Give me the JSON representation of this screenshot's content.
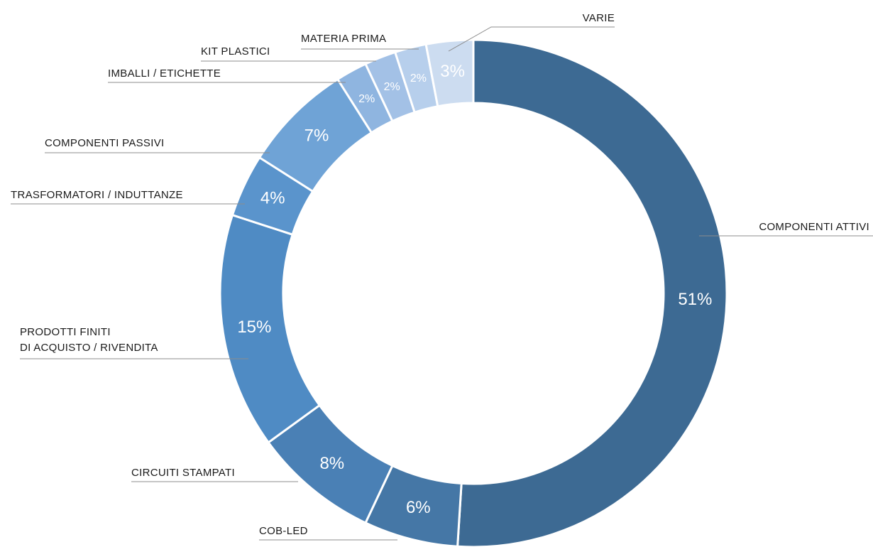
{
  "chart_data": {
    "type": "donut",
    "categories": [
      "COMPONENTI ATTIVI",
      "COB-LED",
      "CIRCUITI STAMPATI",
      "PRODOTTI FINITI\nDI ACQUISTO / RIVENDITA",
      "TRASFORMATORI / INDUTTANZE",
      "COMPONENTI PASSIVI",
      "IMBALLI / ETICHETTE",
      "KIT PLASTICI",
      "MATERIA PRIMA",
      "VARIE"
    ],
    "values": [
      51,
      6,
      8,
      15,
      4,
      7,
      2,
      2,
      2,
      3
    ],
    "value_labels": [
      "51%",
      "6%",
      "8%",
      "15%",
      "4%",
      "7%",
      "2%",
      "2%",
      "2%",
      "3%"
    ],
    "colors": [
      "#3d6a93",
      "#4577a6",
      "#4a80b5",
      "#4f8bc4",
      "#5a94cc",
      "#6fa3d6",
      "#8fb5e0",
      "#a3c1e6",
      "#b7cfec",
      "#ccdcf0"
    ],
    "value_label_colors": [
      "#ffffff",
      "#ffffff",
      "#ffffff",
      "#ffffff",
      "#ffffff",
      "#ffffff",
      "#3a78b8",
      "#3a78b8",
      "#3a78b8",
      "#3a78b8"
    ]
  }
}
